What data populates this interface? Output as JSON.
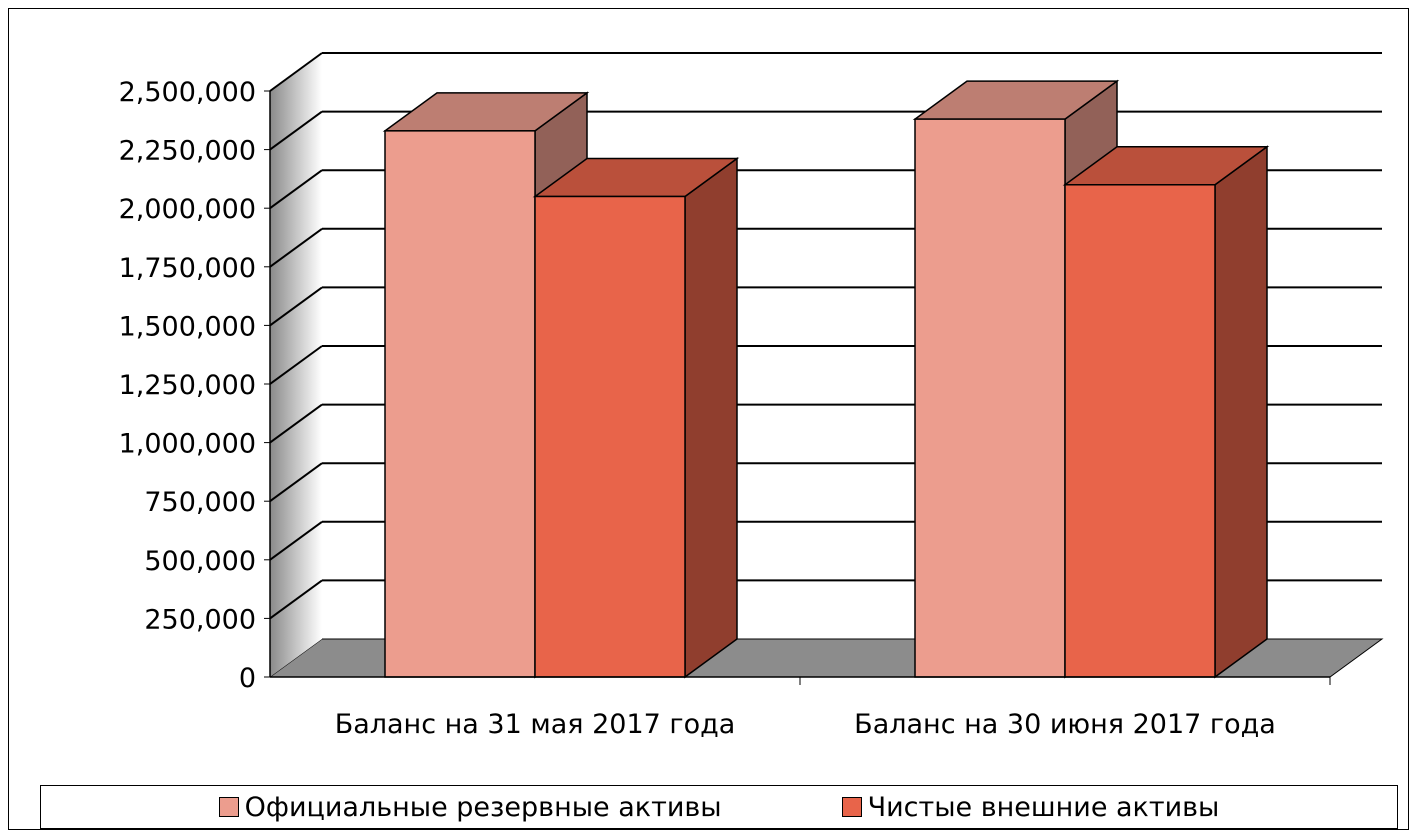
{
  "chart_data": {
    "type": "bar",
    "title": "",
    "xlabel": "",
    "ylabel": "",
    "ylim": [
      0,
      2500000
    ],
    "y_ticks": [
      "0",
      "250,000",
      "500,000",
      "750,000",
      "1,000,000",
      "1,250,000",
      "1,500,000",
      "1,750,000",
      "2,000,000",
      "2,250,000",
      "2,500,000"
    ],
    "categories": [
      "Баланс на 31 мая 2017 года",
      "Баланс на 30 июня 2017 года"
    ],
    "series": [
      {
        "name": "Официальные резервные активы",
        "values": [
          2330000,
          2380000
        ],
        "color": "#ec9d8e"
      },
      {
        "name": "Чистые внешние активы",
        "values": [
          2050000,
          2100000
        ],
        "color": "#e8644a"
      }
    ],
    "grid": true,
    "style": "3d",
    "legend_position": "bottom"
  }
}
